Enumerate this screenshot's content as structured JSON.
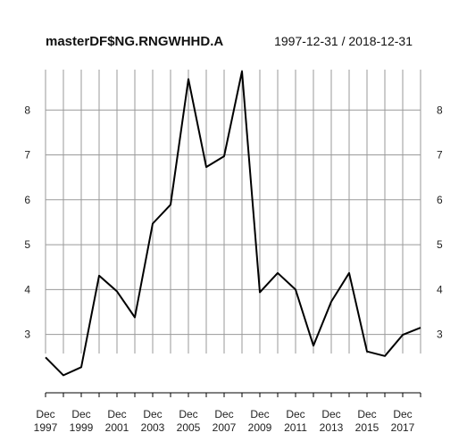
{
  "chart_data": {
    "type": "line",
    "title": "masterDF$NG.RNGWHHD.A",
    "date_range": "1997-12-31 / 2018-12-31",
    "x": [
      "1997-12-31",
      "1998-12-31",
      "1999-12-31",
      "2000-12-31",
      "2001-12-31",
      "2002-12-31",
      "2003-12-31",
      "2004-12-31",
      "2005-12-31",
      "2006-12-31",
      "2007-12-31",
      "2008-12-31",
      "2009-12-31",
      "2010-12-31",
      "2011-12-31",
      "2012-12-31",
      "2013-12-31",
      "2014-12-31",
      "2015-12-31",
      "2016-12-31",
      "2017-12-31",
      "2018-12-31"
    ],
    "series": [
      {
        "values": [
          2.49,
          2.09,
          2.27,
          4.31,
          3.96,
          3.38,
          5.47,
          5.89,
          8.69,
          6.73,
          6.97,
          8.86,
          3.94,
          4.37,
          4.0,
          2.75,
          3.73,
          4.37,
          2.62,
          2.52,
          2.99,
          3.15
        ]
      }
    ],
    "ylim": [
      1.7,
      8.9
    ],
    "y_ticks": [
      3,
      4,
      5,
      6,
      7,
      8
    ],
    "y_tick_labels": [
      "3",
      "4",
      "5",
      "6",
      "7",
      "8"
    ],
    "x_tick_labels": [
      {
        "month": "Dec",
        "year": "1997"
      },
      {
        "month": "Dec",
        "year": "1999"
      },
      {
        "month": "Dec",
        "year": "2001"
      },
      {
        "month": "Dec",
        "year": "2003"
      },
      {
        "month": "Dec",
        "year": "2005"
      },
      {
        "month": "Dec",
        "year": "2007"
      },
      {
        "month": "Dec",
        "year": "2009"
      },
      {
        "month": "Dec",
        "year": "2011"
      },
      {
        "month": "Dec",
        "year": "2013"
      },
      {
        "month": "Dec",
        "year": "2015"
      },
      {
        "month": "Dec",
        "year": "2017"
      }
    ],
    "grid": true,
    "series_color": "#000000",
    "grid_color": "#9a9a9a"
  }
}
